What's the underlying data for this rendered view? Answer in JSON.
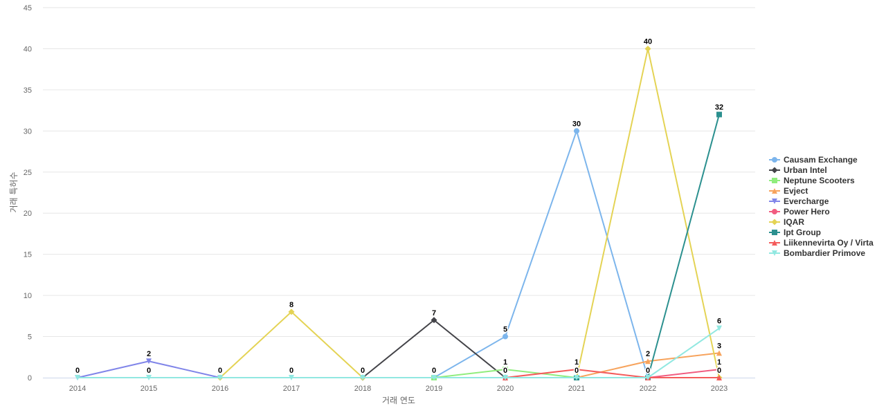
{
  "chart_data": {
    "type": "line",
    "title": "",
    "xlabel": "거래 연도",
    "ylabel": "거래 특허수",
    "ylim": [
      0,
      45
    ],
    "yticks": [
      0,
      5,
      10,
      15,
      20,
      25,
      30,
      35,
      40,
      45
    ],
    "grid": true,
    "legend_position": "right",
    "x": [
      "2014",
      "2015",
      "2016",
      "2017",
      "2018",
      "2019",
      "2020",
      "2021",
      "2022",
      "2023"
    ],
    "series": [
      {
        "name": "Causam Exchange",
        "color": "#7cb5ec",
        "marker": "circle",
        "values": [
          null,
          null,
          null,
          null,
          null,
          0,
          5,
          30,
          0,
          null
        ],
        "labels": [
          null,
          null,
          null,
          null,
          null,
          0,
          5,
          30,
          null,
          null
        ]
      },
      {
        "name": "Urban Intel",
        "color": "#434348",
        "marker": "diamond",
        "values": [
          null,
          null,
          null,
          null,
          0,
          7,
          0,
          null,
          null,
          null
        ],
        "labels": [
          null,
          null,
          null,
          null,
          null,
          7,
          0,
          null,
          null,
          null
        ]
      },
      {
        "name": "Neptune Scooters",
        "color": "#90ed7d",
        "marker": "square",
        "values": [
          null,
          null,
          null,
          null,
          null,
          0,
          1,
          0,
          null,
          null
        ],
        "labels": [
          null,
          null,
          null,
          null,
          null,
          null,
          1,
          null,
          null,
          null
        ]
      },
      {
        "name": "Evject",
        "color": "#f7a35c",
        "marker": "triangle",
        "values": [
          null,
          null,
          null,
          null,
          null,
          null,
          null,
          0,
          2,
          3
        ],
        "labels": [
          null,
          null,
          null,
          null,
          null,
          null,
          null,
          null,
          2,
          3
        ]
      },
      {
        "name": "Evercharge",
        "color": "#8085e9",
        "marker": "triangle-down",
        "values": [
          0,
          2,
          0,
          null,
          null,
          null,
          null,
          null,
          null,
          null
        ],
        "labels": [
          0,
          2,
          0,
          null,
          null,
          null,
          null,
          null,
          null,
          null
        ]
      },
      {
        "name": "Power Hero",
        "color": "#f15c80",
        "marker": "circle",
        "values": [
          null,
          null,
          null,
          null,
          null,
          null,
          null,
          null,
          0,
          1
        ],
        "labels": [
          null,
          null,
          null,
          null,
          null,
          null,
          null,
          null,
          0,
          1
        ]
      },
      {
        "name": "IQAR",
        "color": "#e4d354",
        "marker": "diamond",
        "values": [
          null,
          null,
          0,
          8,
          0,
          null,
          null,
          0,
          40,
          0
        ],
        "labels": [
          null,
          null,
          null,
          8,
          0,
          null,
          null,
          0,
          40,
          0
        ]
      },
      {
        "name": "Ipt Group",
        "color": "#2b908f",
        "marker": "square",
        "values": [
          null,
          null,
          null,
          null,
          null,
          null,
          null,
          0,
          0,
          32
        ],
        "labels": [
          null,
          null,
          null,
          null,
          null,
          null,
          null,
          null,
          null,
          32
        ]
      },
      {
        "name": "Liikennevirta Oy / Virta",
        "color": "#f45b5b",
        "marker": "triangle",
        "values": [
          null,
          null,
          null,
          null,
          null,
          null,
          0,
          1,
          0,
          0
        ],
        "labels": [
          null,
          null,
          null,
          null,
          null,
          null,
          null,
          1,
          null,
          null
        ]
      },
      {
        "name": "Bombardier Primove",
        "color": "#91e8e1",
        "marker": "triangle-down",
        "values": [
          0,
          0,
          0,
          0,
          0,
          0,
          0,
          0,
          0,
          6
        ],
        "labels": [
          null,
          0,
          null,
          0,
          null,
          0,
          0,
          null,
          null,
          6
        ]
      }
    ]
  }
}
